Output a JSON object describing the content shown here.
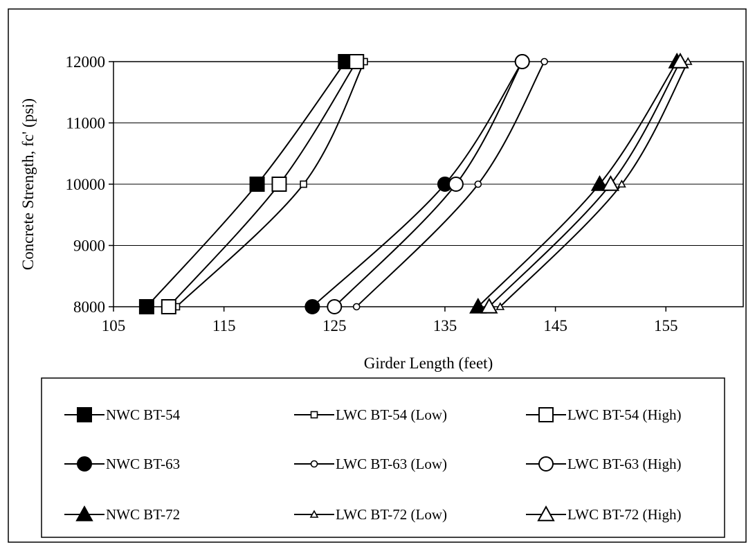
{
  "chart_data": {
    "type": "line",
    "title": "",
    "xlabel": "Girder Length (feet)",
    "ylabel": "Concrete Strength, fc' (psi)",
    "xlim": [
      105,
      162
    ],
    "ylim": [
      8000,
      12000
    ],
    "xticks": [
      105,
      115,
      125,
      135,
      145,
      155
    ],
    "yticks": [
      8000,
      9000,
      10000,
      11000,
      12000
    ],
    "grid": "horizontal",
    "legend_position": "bottom",
    "series": [
      {
        "name": "NWC BT-54",
        "marker": "square",
        "size": "large",
        "fill": "filled",
        "x": [
          108,
          118,
          126
        ],
        "y": [
          8000,
          10000,
          12000
        ]
      },
      {
        "name": "LWC BT-54 (Low)",
        "marker": "square",
        "size": "small",
        "fill": "open",
        "x": [
          110.7,
          122.2,
          127.7
        ],
        "y": [
          8000,
          10000,
          12000
        ]
      },
      {
        "name": "LWC BT-54 (High)",
        "marker": "square",
        "size": "large",
        "fill": "open",
        "x": [
          110,
          120,
          127
        ],
        "y": [
          8000,
          10000,
          12000
        ]
      },
      {
        "name": "NWC BT-63",
        "marker": "circle",
        "size": "large",
        "fill": "filled",
        "x": [
          123,
          135,
          142
        ],
        "y": [
          8000,
          10000,
          12000
        ]
      },
      {
        "name": "LWC BT-63 (Low)",
        "marker": "circle",
        "size": "small",
        "fill": "open",
        "x": [
          127,
          138,
          144
        ],
        "y": [
          8000,
          10000,
          12000
        ]
      },
      {
        "name": "LWC BT-63 (High)",
        "marker": "circle",
        "size": "large",
        "fill": "open",
        "x": [
          125,
          136,
          142
        ],
        "y": [
          8000,
          10000,
          12000
        ]
      },
      {
        "name": "NWC BT-72",
        "marker": "triangle",
        "size": "large",
        "fill": "filled",
        "x": [
          138,
          149,
          156
        ],
        "y": [
          8000,
          10000,
          12000
        ]
      },
      {
        "name": "LWC BT-72 (Low)",
        "marker": "triangle",
        "size": "small",
        "fill": "open",
        "x": [
          140,
          151,
          157
        ],
        "y": [
          8000,
          10000,
          12000
        ]
      },
      {
        "name": "LWC BT-72 (High)",
        "marker": "triangle",
        "size": "large",
        "fill": "open",
        "x": [
          139,
          150,
          156.3
        ],
        "y": [
          8000,
          10000,
          12000
        ]
      }
    ]
  }
}
